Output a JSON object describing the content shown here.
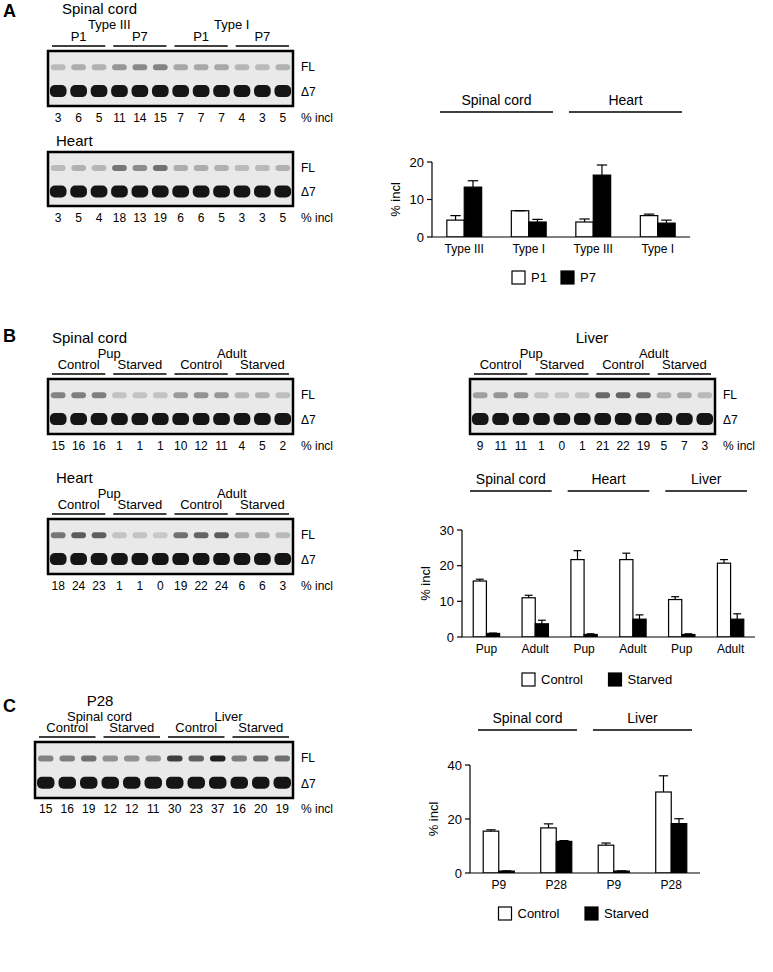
{
  "panel_labels": [
    "A",
    "B",
    "C"
  ],
  "gels": [
    {
      "title": "Spinal cord",
      "groups": [
        "Type III",
        "Type I"
      ],
      "subgroups": [
        "P1",
        "P7",
        "P1",
        "P7"
      ],
      "bands": [
        "FL",
        "Δ7"
      ],
      "value_label": "% incl",
      "values": [
        3,
        6,
        5,
        11,
        14,
        15,
        7,
        7,
        7,
        4,
        3,
        5
      ]
    },
    {
      "title": "Heart",
      "bands": [
        "FL",
        "Δ7"
      ],
      "value_label": "% incl",
      "values": [
        3,
        5,
        4,
        18,
        13,
        19,
        6,
        6,
        5,
        3,
        3,
        5
      ]
    },
    {
      "title": "Spinal cord",
      "groups": [
        "Pup",
        "Adult"
      ],
      "subgroups": [
        "Control",
        "Starved",
        "Control",
        "Starved"
      ],
      "bands": [
        "FL",
        "Δ7"
      ],
      "value_label": "% incl",
      "values": [
        15,
        16,
        16,
        1,
        1,
        1,
        10,
        12,
        11,
        4,
        5,
        2
      ]
    },
    {
      "title": "Liver",
      "groups": [
        "Pup",
        "Adult"
      ],
      "subgroups": [
        "Control",
        "Starved",
        "Control",
        "Starved"
      ],
      "bands": [
        "FL",
        "Δ7"
      ],
      "value_label": "% incl",
      "values": [
        9,
        11,
        11,
        1,
        0,
        1,
        21,
        22,
        19,
        5,
        7,
        3
      ]
    },
    {
      "title": "Heart",
      "groups": [
        "Pup",
        "Adult"
      ],
      "subgroups": [
        "Control",
        "Starved",
        "Control",
        "Starved"
      ],
      "bands": [
        "FL",
        "Δ7"
      ],
      "value_label": "% incl",
      "values": [
        18,
        24,
        23,
        1,
        1,
        0,
        19,
        22,
        24,
        6,
        6,
        3
      ]
    },
    {
      "title": "P28",
      "groups": [
        "Spinal cord",
        "Liver"
      ],
      "subgroups": [
        "Control",
        "Starved",
        "Control",
        "Starved"
      ],
      "bands": [
        "FL",
        "Δ7"
      ],
      "value_label": "% incl",
      "values": [
        15,
        16,
        19,
        12,
        12,
        11,
        30,
        23,
        37,
        16,
        20,
        19
      ]
    }
  ],
  "chart_data": [
    {
      "type": "bar",
      "y_label": "% incl",
      "category_groups": [
        "Spinal cord",
        "Heart"
      ],
      "categories": [
        "Type III",
        "Type I",
        "Type III",
        "Type I"
      ],
      "series": [
        {
          "name": "P1",
          "color": "#ffffff",
          "values": [
            4.5,
            7,
            4,
            5.7
          ],
          "errors": [
            1.2,
            0,
            0.8,
            0.4
          ]
        },
        {
          "name": "P7",
          "color": "#000000",
          "values": [
            13.3,
            4,
            16.5,
            3.7
          ],
          "errors": [
            1.7,
            0.7,
            2.7,
            0.8
          ]
        }
      ],
      "ylim": [
        0,
        20
      ],
      "yticks": [
        0,
        10,
        20
      ],
      "legend": "bottom"
    },
    {
      "type": "bar",
      "y_label": "% incl",
      "category_groups": [
        "Spinal cord",
        "Heart",
        "Liver"
      ],
      "categories": [
        "Pup",
        "Adult",
        "Pup",
        "Adult",
        "Pup",
        "Adult"
      ],
      "series": [
        {
          "name": "Control",
          "color": "#ffffff",
          "values": [
            15.7,
            11,
            21.7,
            21.7,
            10.5,
            20.7
          ],
          "errors": [
            0.5,
            0.7,
            2.5,
            1.8,
            0.8,
            1
          ]
        },
        {
          "name": "Starved",
          "color": "#000000",
          "values": [
            1,
            3.7,
            0.7,
            5,
            0.7,
            5
          ],
          "errors": [
            0.1,
            1,
            0.2,
            1.2,
            0.2,
            1.5
          ]
        }
      ],
      "ylim": [
        0,
        30
      ],
      "yticks": [
        0,
        10,
        20,
        30
      ],
      "legend": "bottom"
    },
    {
      "type": "bar",
      "y_label": "% incl",
      "category_groups": [
        "Spinal cord",
        "Liver"
      ],
      "categories": [
        "P9",
        "P28",
        "P9",
        "P28"
      ],
      "series": [
        {
          "name": "Control",
          "color": "#ffffff",
          "values": [
            15.5,
            16.7,
            10.3,
            30
          ],
          "errors": [
            0.5,
            1.5,
            0.8,
            6
          ]
        },
        {
          "name": "Starved",
          "color": "#000000",
          "values": [
            0.7,
            11.7,
            0.7,
            18.3
          ],
          "errors": [
            0.1,
            0.3,
            0.1,
            1.8
          ]
        }
      ],
      "ylim": [
        0,
        40
      ],
      "yticks": [
        0,
        20,
        40
      ],
      "legend": "bottom"
    }
  ]
}
